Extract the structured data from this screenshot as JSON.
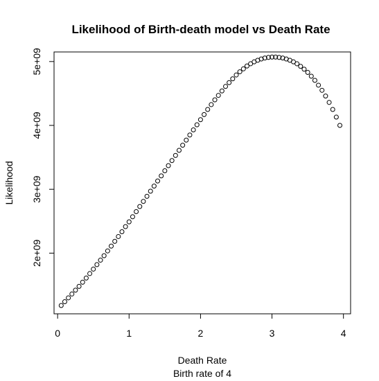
{
  "chart_data": {
    "type": "scatter",
    "title": "Likelihood of Birth-death model vs Death Rate",
    "xlabel": "Death Rate",
    "sublabel": "Birth rate of 4",
    "ylabel": "Likelihood",
    "xlim": [
      -0.05,
      4.1
    ],
    "ylim": [
      1050000000,
      5150000000
    ],
    "x_ticks": [
      0,
      1,
      2,
      3,
      4
    ],
    "x_tick_labels": [
      "0",
      "1",
      "2",
      "3",
      "4"
    ],
    "y_ticks": [
      2000000000,
      3000000000,
      4000000000,
      5000000000
    ],
    "y_tick_labels": [
      "2e+09",
      "3e+09",
      "4e+09",
      "5e+09"
    ],
    "grid": false,
    "legend": "none",
    "marker": "open-circle",
    "x": [
      0.05,
      0.1,
      0.15,
      0.2,
      0.25,
      0.3,
      0.35,
      0.4,
      0.45,
      0.5,
      0.55,
      0.6,
      0.65,
      0.7,
      0.75,
      0.8,
      0.85,
      0.9,
      0.95,
      1.0,
      1.05,
      1.1,
      1.15,
      1.2,
      1.25,
      1.3,
      1.35,
      1.4,
      1.45,
      1.5,
      1.55,
      1.6,
      1.65,
      1.7,
      1.75,
      1.8,
      1.85,
      1.9,
      1.95,
      2.0,
      2.05,
      2.1,
      2.15,
      2.2,
      2.25,
      2.3,
      2.35,
      2.4,
      2.45,
      2.5,
      2.55,
      2.6,
      2.65,
      2.7,
      2.75,
      2.8,
      2.85,
      2.9,
      2.95,
      3.0,
      3.05,
      3.1,
      3.15,
      3.2,
      3.25,
      3.3,
      3.35,
      3.4,
      3.45,
      3.5,
      3.55,
      3.6,
      3.65,
      3.7,
      3.75,
      3.8,
      3.85,
      3.9,
      3.95
    ],
    "y": [
      1180000000,
      1240000000,
      1300000000,
      1360000000,
      1420000000,
      1480000000,
      1545000000,
      1610000000,
      1680000000,
      1750000000,
      1820000000,
      1890000000,
      1960000000,
      2035000000,
      2110000000,
      2185000000,
      2260000000,
      2335000000,
      2415000000,
      2490000000,
      2570000000,
      2650000000,
      2730000000,
      2810000000,
      2890000000,
      2970000000,
      3050000000,
      3130000000,
      3210000000,
      3290000000,
      3370000000,
      3450000000,
      3530000000,
      3610000000,
      3690000000,
      3770000000,
      3850000000,
      3930000000,
      4010000000,
      4090000000,
      4170000000,
      4250000000,
      4325000000,
      4400000000,
      4470000000,
      4540000000,
      4610000000,
      4670000000,
      4730000000,
      4790000000,
      4840000000,
      4885000000,
      4930000000,
      4965000000,
      4995000000,
      5020000000,
      5040000000,
      5055000000,
      5065000000,
      5070000000,
      5070000000,
      5065000000,
      5055000000,
      5040000000,
      5020000000,
      4995000000,
      4965000000,
      4925000000,
      4880000000,
      4830000000,
      4770000000,
      4705000000,
      4630000000,
      4550000000,
      4460000000,
      4360000000,
      4250000000,
      4130000000,
      4000000000
    ]
  }
}
